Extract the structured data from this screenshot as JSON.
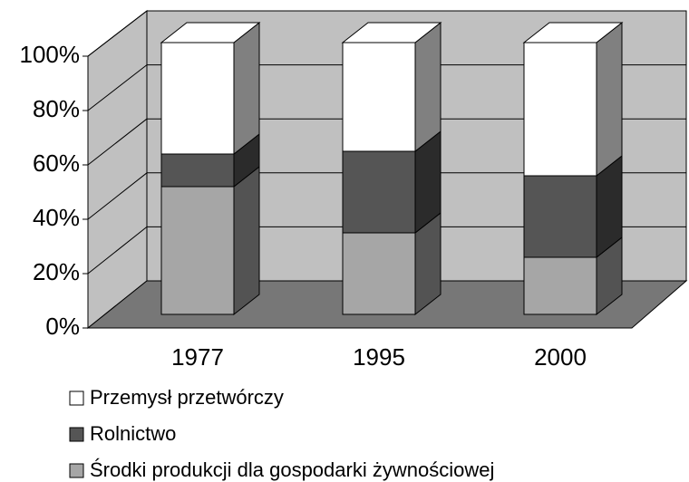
{
  "chart_data": {
    "type": "bar3d",
    "stacked": true,
    "categories": [
      "1977",
      "1995",
      "2000"
    ],
    "series": [
      {
        "name": "Środki produkcji dla gospodarki żywnościowej",
        "color": "#a6a6a6",
        "values": [
          47,
          30,
          21
        ]
      },
      {
        "name": "Rolnictwo",
        "color": "#555555",
        "values": [
          12,
          30,
          30
        ]
      },
      {
        "name": "Przemysł przetwórczy",
        "color": "#ffffff",
        "values": [
          41,
          40,
          49
        ]
      }
    ],
    "ylim": [
      0,
      100
    ],
    "yticks": [
      {
        "value": 0,
        "label": "0%"
      },
      {
        "value": 20,
        "label": "20%"
      },
      {
        "value": 40,
        "label": "40%"
      },
      {
        "value": 60,
        "label": "60%"
      },
      {
        "value": 80,
        "label": "80%"
      },
      {
        "value": 100,
        "label": "100%"
      }
    ],
    "grid": true
  }
}
